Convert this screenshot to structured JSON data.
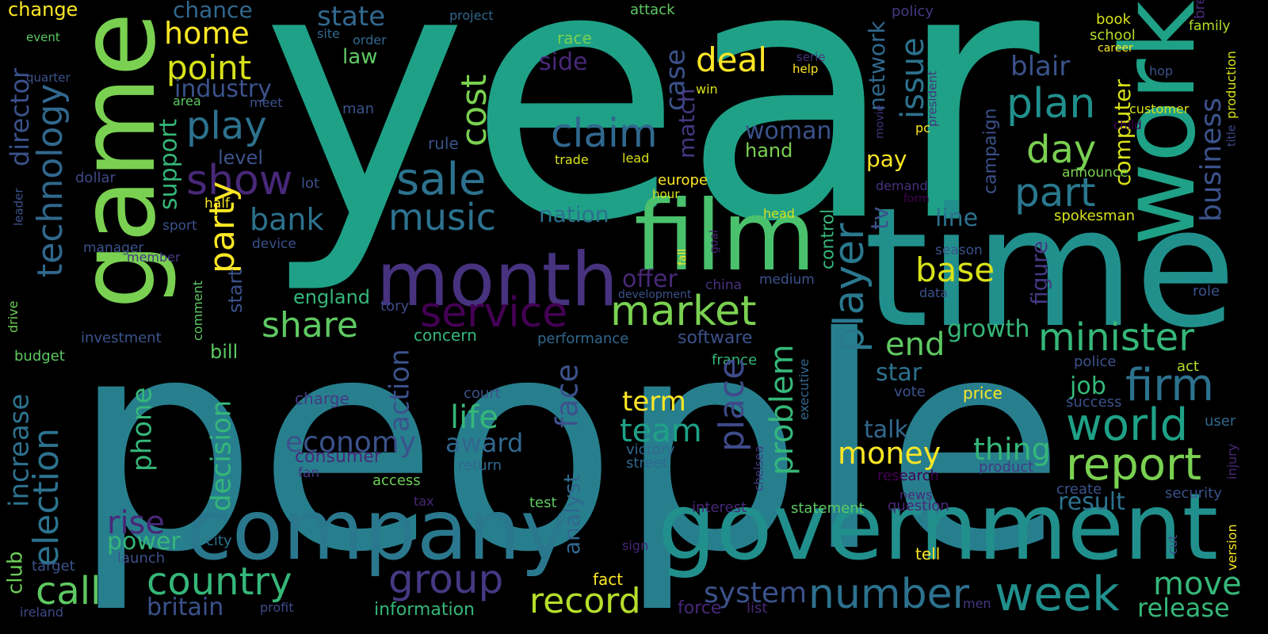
{
  "words": [
    "year",
    "people",
    "time",
    "game",
    "work",
    "film",
    "month",
    "company",
    "government",
    "change",
    "event",
    "quarter",
    "chance",
    "home",
    "state",
    "point",
    "industry",
    "law",
    "play",
    "show",
    "level",
    "lot",
    "dollar",
    "claim",
    "sale",
    "music",
    "side",
    "case",
    "match",
    "deal",
    "network",
    "policy",
    "issue",
    "blair",
    "plan",
    "day",
    "part",
    "computer",
    "campaign",
    "business",
    "book",
    "school",
    "career",
    "family",
    "break",
    "hop",
    "production",
    "title",
    "child",
    "customer",
    "announce",
    "president",
    "serie",
    "help",
    "win",
    "movie",
    "pc",
    "lead",
    "trade",
    "rule",
    "cost",
    "woman",
    "hand",
    "europe",
    "hour",
    "demand",
    "form",
    "tv",
    "pay",
    "nation",
    "party",
    "director",
    "technology",
    "support",
    "bank",
    "head",
    "control",
    "line",
    "base",
    "player",
    "spokesman",
    "goal",
    "fall",
    "sport",
    "half",
    "device",
    "manager",
    "member",
    "leader",
    "start",
    "offer",
    "service",
    "market",
    "share",
    "season",
    "medium",
    "china",
    "development",
    "data",
    "role",
    "figure",
    "england",
    "tory",
    "comment",
    "drive",
    "problem",
    "growth",
    "minister",
    "end",
    "software",
    "performance",
    "concern",
    "investment",
    "bill",
    "budget",
    "executive",
    "france",
    "police",
    "act",
    "star",
    "place",
    "firm",
    "job",
    "success",
    "price",
    "vote",
    "charge",
    "court",
    "term",
    "action",
    "face",
    "increase",
    "election",
    "phone",
    "decision",
    "life",
    "world",
    "talk",
    "team",
    "award",
    "economy",
    "money",
    "thing",
    "user",
    "injury",
    "report",
    "victory",
    "street",
    "chelsea",
    "consumer",
    "return",
    "fan",
    "product",
    "research",
    "access",
    "analyst",
    "news",
    "create",
    "security",
    "tax",
    "test",
    "interest",
    "statement",
    "question",
    "result",
    "club",
    "rise",
    "power",
    "city",
    "launch",
    "target",
    "call",
    "country",
    "group",
    "cut",
    "version",
    "sign",
    "tell",
    "fact",
    "record",
    "system",
    "number",
    "week",
    "move",
    "release",
    "britain",
    "information",
    "profit",
    "ireland",
    "force",
    "list",
    "men",
    "project",
    "site",
    "order",
    "attack",
    "race",
    "area",
    "meet",
    "man"
  ]
}
